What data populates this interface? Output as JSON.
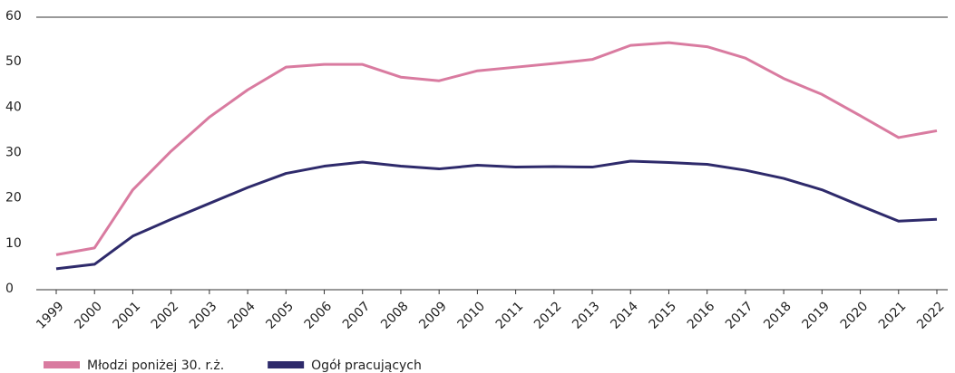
{
  "chart_data": {
    "type": "line",
    "categories": [
      "1999",
      "2000",
      "2001",
      "2002",
      "2003",
      "2004",
      "2005",
      "2006",
      "2007",
      "2008",
      "2009",
      "2010",
      "2011",
      "2012",
      "2013",
      "2014",
      "2015",
      "2016",
      "2017",
      "2018",
      "2019",
      "2020",
      "2021",
      "2022"
    ],
    "series": [
      {
        "name": "Młodzi poniżej 30. r.ż.",
        "color": "#d97ba0",
        "values": [
          7.7,
          9.2,
          22,
          30.5,
          38,
          44,
          49,
          49.6,
          49.6,
          46.8,
          46,
          48.2,
          49,
          49.8,
          50.7,
          53.8,
          54.4,
          53.5,
          51,
          46.5,
          43,
          38.3,
          33.5,
          35
        ]
      },
      {
        "name": "Ogół pracujących",
        "color": "#2e2a6b",
        "values": [
          4.6,
          5.6,
          11.8,
          15.5,
          19,
          22.5,
          25.6,
          27.2,
          28.1,
          27.2,
          26.6,
          27.4,
          27,
          27.1,
          27,
          28.3,
          28,
          27.6,
          26.3,
          24.5,
          22,
          18.5,
          15.1,
          15.5
        ]
      }
    ],
    "ylim": [
      0,
      60
    ],
    "yticks": [
      0,
      10,
      20,
      30,
      40,
      50,
      60
    ],
    "legend": "bottom-left"
  }
}
